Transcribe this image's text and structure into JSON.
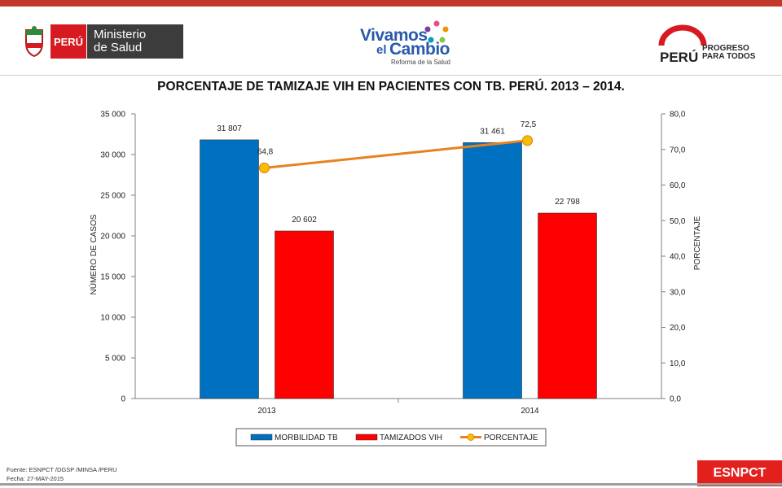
{
  "header": {
    "minsa_country": "PERÚ",
    "minsa_name_line1": "Ministerio",
    "minsa_name_line2": "de Salud",
    "campaign_line1": "Vivamos",
    "campaign_line2a": "el",
    "campaign_line2b": "Cambio",
    "campaign_sub": "Reforma de la Salud",
    "brand_word": "PERÚ",
    "brand_line1": "PROGRESO",
    "brand_line2": "PARA TODOS"
  },
  "chart_data": {
    "type": "bar",
    "title": "PORCENTAJE DE TAMIZAJE VIH EN PACIENTES CON TB. PERÚ. 2013 – 2014.",
    "categories": [
      "2013",
      "2014"
    ],
    "series": [
      {
        "name": "MORBILIDAD TB",
        "type": "bar",
        "axis": "left",
        "color": "#0070c0",
        "values": [
          31807,
          31461
        ],
        "labels": [
          "31 807",
          "31 461"
        ]
      },
      {
        "name": "TAMIZADOS VIH",
        "type": "bar",
        "axis": "left",
        "color": "#ff0000",
        "values": [
          20602,
          22798
        ],
        "labels": [
          "20 602",
          "22 798"
        ]
      },
      {
        "name": "PORCENTAJE",
        "type": "line",
        "axis": "right",
        "color": "#e8821e",
        "marker_color": "#f5c000",
        "values": [
          64.8,
          72.5
        ],
        "labels": [
          "64,8",
          "72,5"
        ]
      }
    ],
    "ylabel": "NÚMERO DE CASOS",
    "y2label": "PORCENTAJE",
    "ylim": [
      0,
      35000
    ],
    "y2lim": [
      0,
      80
    ],
    "yticks": [
      0,
      5000,
      10000,
      15000,
      20000,
      25000,
      30000,
      35000
    ],
    "ytick_labels": [
      "0",
      "5 000",
      "10 000",
      "15 000",
      "20 000",
      "25 000",
      "30 000",
      "35 000"
    ],
    "y2ticks": [
      0,
      10,
      20,
      30,
      40,
      50,
      60,
      70,
      80
    ],
    "y2tick_labels": [
      "0,0",
      "10,0",
      "20,0",
      "30,0",
      "40,0",
      "50,0",
      "60,0",
      "70,0",
      "80,0"
    ],
    "grid": false,
    "legend_position": "bottom"
  },
  "footer": {
    "source": "Fuente: ESNPCT /DGSP /MINSA /PERU",
    "date": "Fecha: 27-MAY-2015",
    "badge": "ESNPCT"
  }
}
